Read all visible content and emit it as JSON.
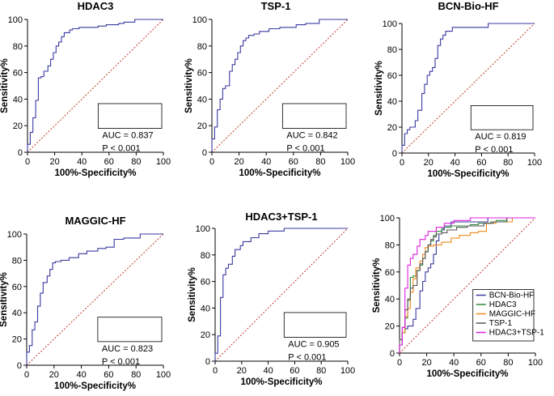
{
  "chart_data": [
    {
      "type": "line",
      "title": "HDAC3",
      "xlabel": "100%-Specificity%",
      "ylabel": "Sensitivity%",
      "xlim": [
        0,
        100
      ],
      "ylim": [
        0,
        100
      ],
      "xticks": [
        "0",
        "20",
        "40",
        "60",
        "80",
        "100"
      ],
      "yticks": [
        "0",
        "20",
        "40",
        "60",
        "80",
        "100"
      ],
      "auc_text": "AUC = 0.837",
      "p_text": "P < 0.001",
      "series": [
        {
          "name": "HDAC3",
          "color": "#3a3aa0",
          "x": [
            0,
            0,
            2,
            2,
            4,
            4,
            6,
            6,
            8,
            8,
            10,
            10,
            12,
            12,
            15,
            15,
            17,
            17,
            19,
            19,
            21,
            21,
            23,
            23,
            25,
            25,
            27,
            27,
            31,
            31,
            33,
            33,
            38,
            38,
            52,
            52,
            58,
            58,
            67,
            67,
            71,
            71,
            79,
            79,
            100
          ],
          "y": [
            0,
            6,
            6,
            15,
            15,
            26,
            26,
            39,
            39,
            56,
            56,
            57,
            57,
            61,
            61,
            65,
            65,
            70,
            70,
            75,
            75,
            80,
            80,
            83,
            83,
            87,
            87,
            90,
            90,
            92,
            92,
            93,
            93,
            94,
            94,
            95,
            95,
            96,
            96,
            97,
            97,
            98,
            98,
            100,
            100
          ]
        }
      ]
    },
    {
      "type": "line",
      "title": "TSP-1",
      "xlabel": "100%-Specificity%",
      "ylabel": "Sensitivity%",
      "xlim": [
        0,
        100
      ],
      "ylim": [
        0,
        100
      ],
      "xticks": [
        "0",
        "20",
        "40",
        "60",
        "80",
        "100"
      ],
      "yticks": [
        "0",
        "20",
        "40",
        "60",
        "80",
        "100"
      ],
      "auc_text": "AUC = 0.842",
      "p_text": "P < 0.001",
      "series": [
        {
          "name": "TSP-1",
          "color": "#3a3aa0",
          "x": [
            0,
            0,
            2,
            2,
            4,
            4,
            6,
            6,
            8,
            8,
            10,
            10,
            13,
            13,
            15,
            15,
            17,
            17,
            19,
            19,
            21,
            21,
            23,
            23,
            25,
            25,
            27,
            27,
            31,
            31,
            35,
            35,
            42,
            42,
            50,
            50,
            62,
            62,
            69,
            69,
            79,
            79,
            100
          ],
          "y": [
            0,
            10,
            10,
            19,
            19,
            32,
            32,
            40,
            40,
            48,
            48,
            50,
            50,
            61,
            61,
            66,
            66,
            70,
            70,
            75,
            75,
            80,
            80,
            84,
            84,
            86,
            86,
            88,
            88,
            89,
            89,
            91,
            91,
            93,
            93,
            94,
            94,
            96,
            96,
            97,
            97,
            100,
            100
          ]
        }
      ]
    },
    {
      "type": "line",
      "title": "BCN-Bio-HF",
      "xlabel": "100%-Specificity%",
      "ylabel": "Sensitivity%",
      "xlim": [
        0,
        100
      ],
      "ylim": [
        0,
        100
      ],
      "xticks": [
        "0",
        "20",
        "40",
        "60",
        "80",
        "100"
      ],
      "yticks": [
        "0",
        "20",
        "40",
        "60",
        "80",
        "100"
      ],
      "auc_text": "AUC = 0.819",
      "p_text": "P < 0.001",
      "series": [
        {
          "name": "BCN-Bio-HF",
          "color": "#3a3aa0",
          "x": [
            0,
            0,
            2,
            2,
            4,
            4,
            6,
            6,
            10,
            10,
            12,
            12,
            15,
            15,
            17,
            17,
            19,
            19,
            21,
            21,
            23,
            23,
            25,
            25,
            27,
            27,
            29,
            29,
            31,
            31,
            33,
            33,
            38,
            38,
            65,
            65,
            100
          ],
          "y": [
            0,
            6,
            6,
            15,
            15,
            18,
            18,
            20,
            20,
            25,
            25,
            33,
            33,
            46,
            46,
            53,
            53,
            60,
            60,
            63,
            63,
            66,
            66,
            73,
            73,
            83,
            83,
            88,
            88,
            91,
            91,
            94,
            94,
            97,
            97,
            100,
            100
          ]
        }
      ]
    },
    {
      "type": "line",
      "title": "MAGGIC-HF",
      "xlabel": "100%-Specificity%",
      "ylabel": "Sensitivity%",
      "xlim": [
        0,
        100
      ],
      "ylim": [
        0,
        100
      ],
      "xticks": [
        "0",
        "20",
        "40",
        "60",
        "80",
        "100"
      ],
      "yticks": [
        "0",
        "20",
        "40",
        "60",
        "80",
        "100"
      ],
      "auc_text": "AUC = 0.823",
      "p_text": "P < 0.001",
      "series": [
        {
          "name": "MAGGIC-HF",
          "color": "#3a3aa0",
          "x": [
            0,
            0,
            2,
            2,
            4,
            4,
            6,
            6,
            8,
            8,
            10,
            10,
            12,
            12,
            15,
            15,
            17,
            17,
            19,
            19,
            21,
            21,
            25,
            25,
            31,
            31,
            38,
            38,
            44,
            44,
            52,
            52,
            58,
            58,
            64,
            64,
            71,
            71,
            83,
            83,
            100
          ],
          "y": [
            0,
            10,
            10,
            15,
            15,
            27,
            27,
            33,
            33,
            45,
            45,
            55,
            55,
            63,
            63,
            68,
            68,
            73,
            73,
            78,
            78,
            79,
            79,
            80,
            80,
            82,
            82,
            85,
            85,
            87,
            87,
            89,
            89,
            90,
            90,
            96,
            96,
            97,
            97,
            100,
            100
          ]
        }
      ]
    },
    {
      "type": "line",
      "title": "HDAC3+TSP-1",
      "xlabel": "100%-Specificity%",
      "ylabel": "Sensitivity%",
      "xlim": [
        0,
        100
      ],
      "ylim": [
        0,
        100
      ],
      "xticks": [
        "0",
        "20",
        "40",
        "60",
        "80",
        "100"
      ],
      "yticks": [
        "0",
        "20",
        "40",
        "60",
        "80",
        "100"
      ],
      "auc_text": "AUC = 0.905",
      "p_text": "P < 0.001",
      "series": [
        {
          "name": "HDAC3+TSP-1",
          "color": "#3a3aa0",
          "x": [
            0,
            0,
            2,
            2,
            4,
            4,
            6,
            6,
            8,
            8,
            10,
            10,
            13,
            13,
            15,
            15,
            19,
            19,
            21,
            21,
            27,
            27,
            33,
            33,
            40,
            40,
            52,
            52,
            100
          ],
          "y": [
            0,
            6,
            6,
            19,
            19,
            48,
            48,
            65,
            65,
            70,
            70,
            73,
            73,
            79,
            79,
            84,
            84,
            87,
            87,
            90,
            90,
            93,
            93,
            96,
            96,
            98,
            98,
            100,
            100
          ]
        }
      ]
    },
    {
      "type": "line",
      "title": "",
      "xlabel": "100%-Specificity%",
      "ylabel": "Sensitivity%",
      "xlim": [
        0,
        100
      ],
      "ylim": [
        0,
        100
      ],
      "xticks": [
        "0",
        "20",
        "40",
        "60",
        "80",
        "100"
      ],
      "yticks": [
        "0",
        "20",
        "40",
        "60",
        "80",
        "100"
      ],
      "legend_position": "bottom-right",
      "series": [
        {
          "name": "BCN-Bio-HF",
          "color": "#3a3aa0",
          "x": [
            0,
            0,
            2,
            2,
            4,
            4,
            6,
            6,
            10,
            10,
            12,
            12,
            15,
            15,
            17,
            17,
            19,
            19,
            21,
            21,
            23,
            23,
            25,
            25,
            27,
            27,
            29,
            29,
            31,
            31,
            33,
            33,
            38,
            38,
            65,
            65,
            100
          ],
          "y": [
            0,
            6,
            6,
            15,
            15,
            18,
            18,
            20,
            20,
            25,
            25,
            33,
            33,
            46,
            46,
            53,
            53,
            60,
            60,
            63,
            63,
            66,
            66,
            73,
            73,
            83,
            83,
            88,
            88,
            91,
            91,
            94,
            94,
            97,
            97,
            100,
            100
          ]
        },
        {
          "name": "HDAC3",
          "color": "#2e8b3a",
          "x": [
            0,
            0,
            2,
            2,
            4,
            4,
            6,
            6,
            8,
            8,
            10,
            10,
            12,
            12,
            15,
            15,
            17,
            17,
            19,
            19,
            21,
            21,
            23,
            23,
            25,
            25,
            27,
            27,
            31,
            31,
            33,
            33,
            38,
            38,
            52,
            52,
            58,
            58,
            67,
            67,
            71,
            71,
            79,
            79,
            100
          ],
          "y": [
            0,
            6,
            6,
            15,
            15,
            26,
            26,
            39,
            39,
            56,
            56,
            57,
            57,
            61,
            61,
            65,
            65,
            70,
            70,
            75,
            75,
            80,
            80,
            83,
            83,
            87,
            87,
            90,
            90,
            92,
            92,
            93,
            93,
            94,
            94,
            95,
            95,
            96,
            96,
            97,
            97,
            98,
            98,
            100,
            100
          ]
        },
        {
          "name": "MAGGIC-HF",
          "color": "#f08a1c",
          "x": [
            0,
            0,
            2,
            2,
            4,
            4,
            6,
            6,
            8,
            8,
            10,
            10,
            12,
            12,
            15,
            15,
            17,
            17,
            19,
            19,
            21,
            21,
            25,
            25,
            31,
            31,
            38,
            38,
            44,
            44,
            52,
            52,
            58,
            58,
            64,
            64,
            71,
            71,
            83,
            83,
            100
          ],
          "y": [
            0,
            10,
            10,
            15,
            15,
            27,
            27,
            33,
            33,
            45,
            45,
            55,
            55,
            63,
            63,
            68,
            68,
            73,
            73,
            78,
            78,
            79,
            79,
            80,
            80,
            82,
            82,
            85,
            85,
            87,
            87,
            89,
            89,
            90,
            90,
            96,
            96,
            97,
            97,
            100,
            100
          ]
        },
        {
          "name": "TSP-1",
          "color": "#555555",
          "x": [
            0,
            0,
            2,
            2,
            4,
            4,
            6,
            6,
            8,
            8,
            10,
            10,
            13,
            13,
            15,
            15,
            17,
            17,
            19,
            19,
            21,
            21,
            23,
            23,
            25,
            25,
            27,
            27,
            31,
            31,
            35,
            35,
            42,
            42,
            50,
            50,
            62,
            62,
            69,
            69,
            79,
            79,
            100
          ],
          "y": [
            0,
            10,
            10,
            19,
            19,
            32,
            32,
            40,
            40,
            48,
            48,
            50,
            50,
            61,
            61,
            66,
            66,
            70,
            70,
            75,
            75,
            80,
            80,
            84,
            84,
            86,
            86,
            88,
            88,
            89,
            89,
            91,
            91,
            93,
            93,
            94,
            94,
            96,
            96,
            97,
            97,
            100,
            100
          ]
        },
        {
          "name": "HDAC3+TSP-1",
          "color": "#e020e0",
          "x": [
            0,
            0,
            2,
            2,
            4,
            4,
            6,
            6,
            8,
            8,
            10,
            10,
            13,
            13,
            15,
            15,
            19,
            19,
            21,
            21,
            27,
            27,
            33,
            33,
            40,
            40,
            52,
            52,
            100
          ],
          "y": [
            0,
            6,
            6,
            19,
            19,
            48,
            48,
            65,
            65,
            70,
            70,
            73,
            73,
            79,
            79,
            84,
            84,
            87,
            87,
            90,
            90,
            93,
            93,
            96,
            96,
            98,
            98,
            100,
            100
          ]
        }
      ]
    }
  ]
}
